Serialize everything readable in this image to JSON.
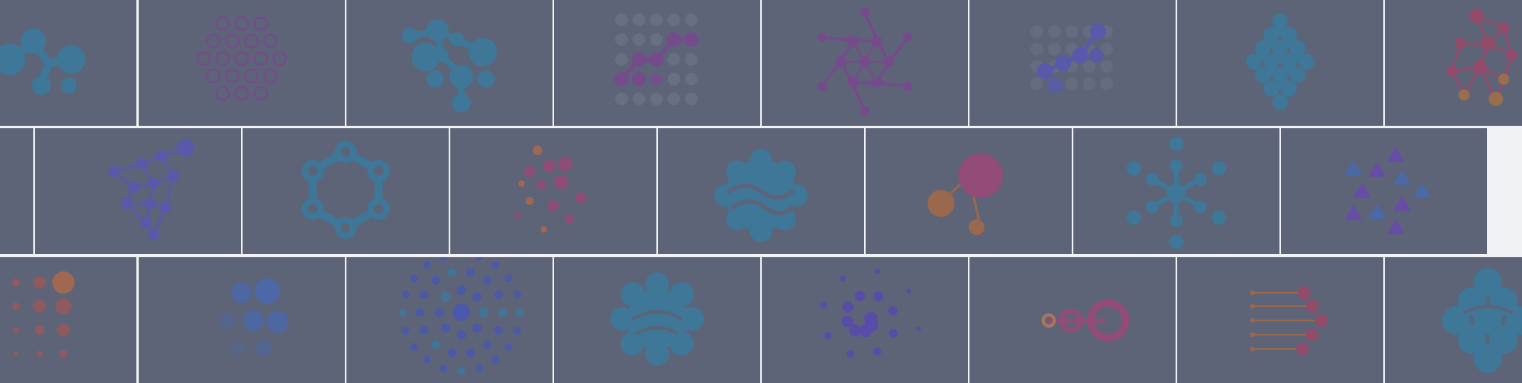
{
  "palette": {
    "tile_background": "#5f6579",
    "grid_line": "#ffffff",
    "blue": "#3d7a9c",
    "purple": "#7a4a8e",
    "magenta": "#9a4a78",
    "orange": "#b06a4a",
    "faint": "#6c7286"
  },
  "rows": [
    {
      "name": "row-1",
      "tiles": [
        {
          "name": "molecule-chain-logo",
          "icon": "molecule-chain-icon",
          "color": "#3d7a9c"
        },
        {
          "name": "ring-cluster-logo",
          "icon": "ring-cluster-icon",
          "color": "#7a4a8e"
        },
        {
          "name": "network-nodes-logo",
          "icon": "network-nodes-icon",
          "color": "#3d7a9c"
        },
        {
          "name": "dot-grid-zigzag-logo",
          "icon": "dot-grid-zigzag-icon",
          "color": "#7a4a8e"
        },
        {
          "name": "star-mesh-logo",
          "icon": "star-mesh-icon",
          "color": "#7a4a8e"
        },
        {
          "name": "fading-dots-path-logo",
          "icon": "fading-dots-path-icon",
          "color": "#5a5ab0"
        },
        {
          "name": "wavy-diamond-logo",
          "icon": "wavy-diamond-icon",
          "color": "#3d7a9c"
        },
        {
          "name": "gradient-mesh-logo",
          "icon": "gradient-mesh-icon",
          "color": "#9a4a6a"
        }
      ]
    },
    {
      "name": "row-2",
      "tiles": [
        {
          "name": "edge-partial-logo",
          "icon": "blank-icon",
          "color": "#5f6579"
        },
        {
          "name": "triangle-mesh-logo",
          "icon": "triangle-mesh-icon",
          "color": "#5a5ab0"
        },
        {
          "name": "hexagon-ring-logo",
          "icon": "hexagon-ring-icon",
          "color": "#3d7a9c"
        },
        {
          "name": "scattered-dots-logo",
          "icon": "scattered-dots-icon",
          "color": "#9a4a78"
        },
        {
          "name": "wavy-blob-logo",
          "icon": "wavy-blob-icon",
          "color": "#3d7a9c"
        },
        {
          "name": "two-spheres-logo",
          "icon": "two-spheres-icon",
          "color": "#9a4a78"
        },
        {
          "name": "snowflake-nodes-logo",
          "icon": "snowflake-nodes-icon",
          "color": "#3d7a9c"
        },
        {
          "name": "triangle-star-logo",
          "icon": "triangle-star-icon",
          "color": "#6a4ab0"
        }
      ]
    },
    {
      "name": "row-3",
      "tiles": [
        {
          "name": "dot-gradient-grid-logo",
          "icon": "dot-gradient-grid-icon",
          "color": "#9a5a5a"
        },
        {
          "name": "blurred-circles-logo",
          "icon": "blurred-circles-icon",
          "color": "#4a6ab0"
        },
        {
          "name": "concentric-dots-logo",
          "icon": "concentric-dots-icon",
          "color": "#4a5ab0"
        },
        {
          "name": "flower-blob-logo",
          "icon": "flower-blob-icon",
          "color": "#3d7a9c"
        },
        {
          "name": "spiral-dots-logo",
          "icon": "spiral-dots-icon",
          "color": "#5a4ab0"
        },
        {
          "name": "growing-rings-logo",
          "icon": "growing-rings-icon",
          "color": "#9a4a78"
        },
        {
          "name": "speed-lines-dots-logo",
          "icon": "speed-lines-dots-icon",
          "color": "#9a4a6a"
        },
        {
          "name": "blob-cluster-logo",
          "icon": "blob-cluster-icon",
          "color": "#3d7a9c"
        }
      ]
    }
  ]
}
